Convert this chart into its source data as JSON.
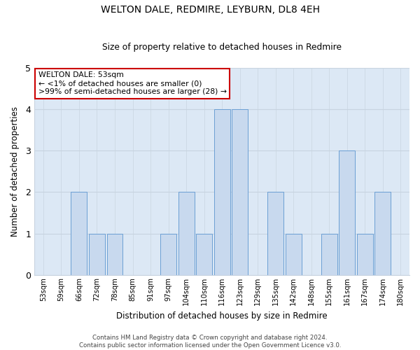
{
  "title1": "WELTON DALE, REDMIRE, LEYBURN, DL8 4EH",
  "title2": "Size of property relative to detached houses in Redmire",
  "xlabel": "Distribution of detached houses by size in Redmire",
  "ylabel": "Number of detached properties",
  "categories": [
    "53sqm",
    "59sqm",
    "66sqm",
    "72sqm",
    "78sqm",
    "85sqm",
    "91sqm",
    "97sqm",
    "104sqm",
    "110sqm",
    "116sqm",
    "123sqm",
    "129sqm",
    "135sqm",
    "142sqm",
    "148sqm",
    "155sqm",
    "161sqm",
    "167sqm",
    "174sqm",
    "180sqm"
  ],
  "values": [
    0,
    0,
    2,
    1,
    1,
    0,
    0,
    1,
    2,
    1,
    4,
    4,
    0,
    2,
    1,
    0,
    1,
    3,
    1,
    2,
    0
  ],
  "bar_color": "#c8d9ee",
  "bar_edge_color": "#6b9fd4",
  "ylim": [
    0,
    5
  ],
  "yticks": [
    0,
    1,
    2,
    3,
    4,
    5
  ],
  "grid_color": "#c8d4e0",
  "bg_color": "#dce8f5",
  "fig_color": "#ffffff",
  "annotation_text": "WELTON DALE: 53sqm\n← <1% of detached houses are smaller (0)\n>99% of semi-detached houses are larger (28) →",
  "annotation_box_color": "#ffffff",
  "annotation_box_edge": "#cc0000",
  "footer1": "Contains HM Land Registry data © Crown copyright and database right 2024.",
  "footer2": "Contains public sector information licensed under the Open Government Licence v3.0."
}
